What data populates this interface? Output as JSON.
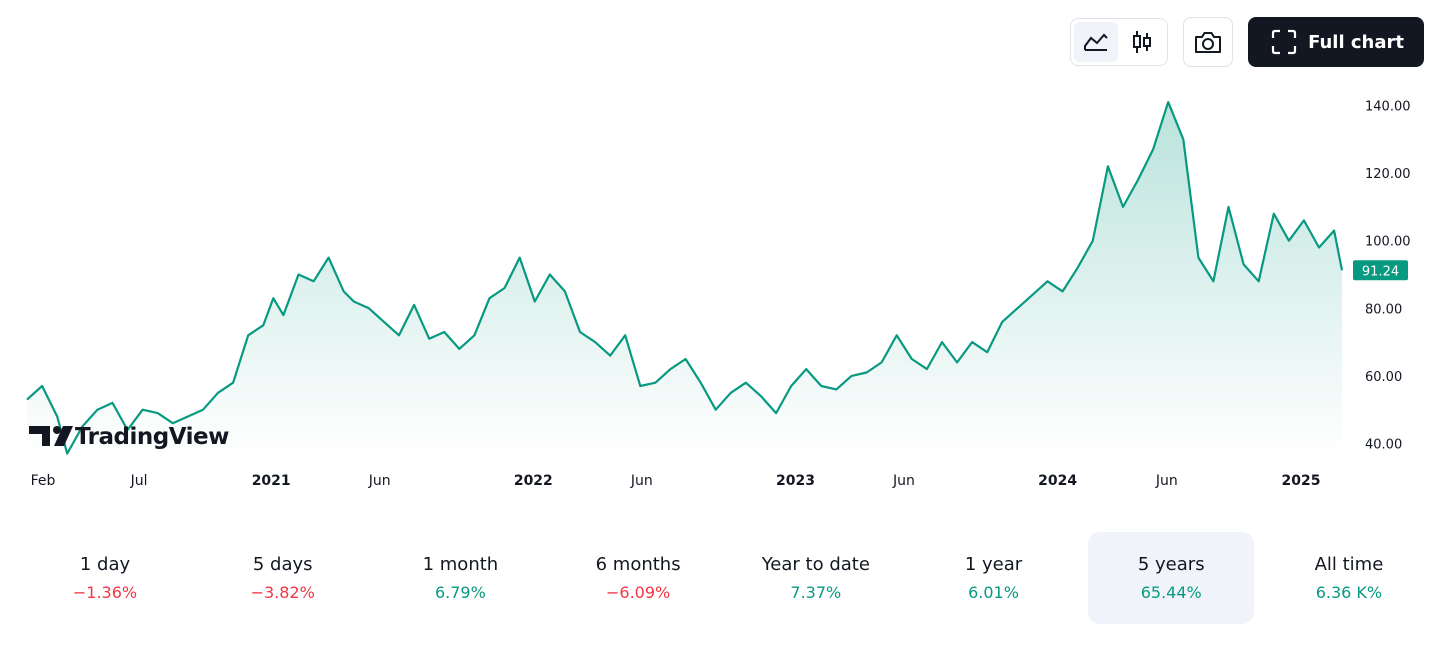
{
  "toolbar": {
    "line_icon": "line-chart-icon",
    "candle_icon": "candlestick-icon",
    "camera_icon": "camera-icon",
    "fullscreen_icon": "fullscreen-icon",
    "full_chart_label": "Full chart"
  },
  "logo": {
    "text": "TradingView"
  },
  "colors": {
    "line": "#089981",
    "positive": "#089981",
    "negative": "#f23645",
    "price_badge": "#089981"
  },
  "chart_data": {
    "type": "area",
    "title": "",
    "xlabel": "",
    "ylabel": "",
    "ylim": [
      35,
      143
    ],
    "y_ticks": [
      "140.00",
      "120.00",
      "100.00",
      "80.00",
      "60.00",
      "40.00"
    ],
    "y_tick_values": [
      140,
      120,
      100,
      80,
      60,
      40
    ],
    "x_ticks": [
      {
        "label": "Feb",
        "date": "2020-02",
        "bold": false
      },
      {
        "label": "Jul",
        "date": "2020-07",
        "bold": false
      },
      {
        "label": "2021",
        "date": "2021-01",
        "bold": true
      },
      {
        "label": "Jun",
        "date": "2021-06",
        "bold": false
      },
      {
        "label": "2022",
        "date": "2022-01",
        "bold": true
      },
      {
        "label": "Jun",
        "date": "2022-06",
        "bold": false
      },
      {
        "label": "2023",
        "date": "2023-01",
        "bold": true
      },
      {
        "label": "Jun",
        "date": "2023-06",
        "bold": false
      },
      {
        "label": "2024",
        "date": "2024-01",
        "bold": true
      },
      {
        "label": "Jun",
        "date": "2024-06",
        "bold": false
      },
      {
        "label": "2025",
        "date": "2025-01",
        "bold": true
      }
    ],
    "last_price": "91.24",
    "series": [
      {
        "x": [
          "2020-01-27",
          "2020-02-17",
          "2020-03-09",
          "2020-03-23",
          "2020-04-13",
          "2020-05-04",
          "2020-05-25",
          "2020-06-15",
          "2020-07-06",
          "2020-07-27",
          "2020-08-17",
          "2020-09-07",
          "2020-09-28",
          "2020-10-19",
          "2020-11-09",
          "2020-11-30",
          "2020-12-21",
          "2021-01-04",
          "2021-01-18",
          "2021-02-08",
          "2021-03-01",
          "2021-03-22",
          "2021-04-12",
          "2021-04-26",
          "2021-05-17",
          "2021-06-07",
          "2021-06-28",
          "2021-07-19",
          "2021-08-09",
          "2021-08-30",
          "2021-09-20",
          "2021-10-11",
          "2021-11-01",
          "2021-11-22",
          "2021-12-13",
          "2022-01-03",
          "2022-01-24",
          "2022-02-14",
          "2022-03-07",
          "2022-03-28",
          "2022-04-18",
          "2022-05-09",
          "2022-05-30",
          "2022-06-20",
          "2022-07-11",
          "2022-08-01",
          "2022-08-22",
          "2022-09-12",
          "2022-10-03",
          "2022-10-24",
          "2022-11-14",
          "2022-12-05",
          "2022-12-26",
          "2023-01-16",
          "2023-02-06",
          "2023-02-27",
          "2023-03-20",
          "2023-04-10",
          "2023-05-01",
          "2023-05-22",
          "2023-06-12",
          "2023-07-03",
          "2023-07-24",
          "2023-08-14",
          "2023-09-04",
          "2023-09-25",
          "2023-10-16",
          "2023-11-06",
          "2023-11-27",
          "2023-12-18",
          "2024-01-08",
          "2024-01-29",
          "2024-02-19",
          "2024-03-11",
          "2024-04-01",
          "2024-04-22",
          "2024-05-13",
          "2024-06-03",
          "2024-06-24",
          "2024-07-15",
          "2024-08-05",
          "2024-08-26",
          "2024-09-16",
          "2024-10-07",
          "2024-10-28",
          "2024-11-18",
          "2024-12-09",
          "2024-12-30",
          "2025-01-20",
          "2025-01-31"
        ],
        "values": [
          53,
          57,
          48,
          37,
          45,
          50,
          52,
          44,
          50,
          49,
          46,
          48,
          50,
          55,
          58,
          72,
          75,
          83,
          78,
          90,
          88,
          95,
          85,
          82,
          80,
          76,
          72,
          81,
          71,
          73,
          68,
          72,
          83,
          86,
          95,
          82,
          90,
          85,
          73,
          70,
          66,
          72,
          57,
          58,
          62,
          65,
          58,
          50,
          55,
          58,
          54,
          49,
          57,
          62,
          57,
          56,
          60,
          61,
          64,
          72,
          65,
          62,
          70,
          64,
          70,
          67,
          76,
          80,
          84,
          88,
          85,
          92,
          100,
          122,
          110,
          118,
          127,
          141,
          130,
          95,
          88,
          110,
          93,
          88,
          108,
          100,
          106,
          98,
          103,
          91.24
        ]
      }
    ]
  },
  "periods": [
    {
      "label": "1 day",
      "change": "−1.36%",
      "trend": "down"
    },
    {
      "label": "5 days",
      "change": "−3.82%",
      "trend": "down"
    },
    {
      "label": "1 month",
      "change": "6.79%",
      "trend": "up"
    },
    {
      "label": "6 months",
      "change": "−6.09%",
      "trend": "down"
    },
    {
      "label": "Year to date",
      "change": "7.37%",
      "trend": "up"
    },
    {
      "label": "1 year",
      "change": "6.01%",
      "trend": "up"
    },
    {
      "label": "5 years",
      "change": "65.44%",
      "trend": "up",
      "active": true
    },
    {
      "label": "All time",
      "change": "6.36 K%",
      "trend": "up"
    }
  ]
}
